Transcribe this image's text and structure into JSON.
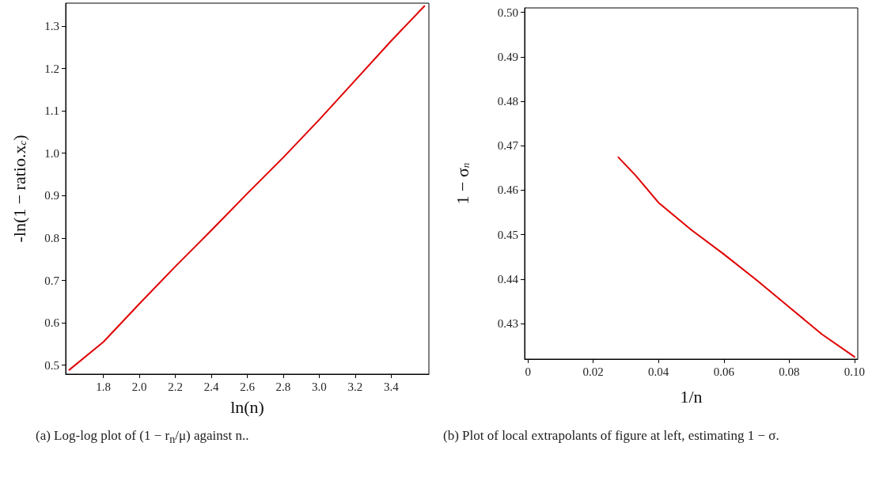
{
  "chart_data": [
    {
      "type": "line",
      "xlabel": "ln(n)",
      "ylabel": "-ln(1 − ratio.x$_{c}$)",
      "x": [
        1.61,
        1.8,
        2.0,
        2.2,
        2.4,
        2.6,
        2.8,
        3.0,
        3.2,
        3.4,
        3.585
      ],
      "series": [
        {
          "color": "#e00000",
          "values": [
            0.489,
            0.555,
            0.645,
            0.733,
            0.818,
            0.905,
            0.99,
            1.079,
            1.172,
            1.265,
            1.347
          ]
        }
      ],
      "xlim": [
        1.59,
        3.61
      ],
      "xticks": [
        1.8,
        {
          "value": 2,
          "label": "2.0"
        },
        2.2,
        2.4,
        2.6,
        2.8,
        {
          "value": 3,
          "label": "3.0"
        },
        3.2,
        3.4
      ],
      "ylim": [
        0.479,
        1.354
      ],
      "yticks": [
        0.5,
        0.6,
        0.7,
        0.8,
        0.9,
        {
          "value": 1,
          "label": "1.0"
        },
        1.1,
        1.2,
        1.3
      ],
      "grid": false,
      "marker": "none",
      "line_style": "solid",
      "annotations": [
        "(a) Log-log plot of (1 − r$_{n}$/μ) against n.."
      ]
    },
    {
      "type": "line",
      "xlabel": "1/n",
      "ylabel": "1 − σ$_{n}$",
      "x": [
        0.0277,
        0.033,
        0.04,
        0.05,
        0.06,
        0.07,
        0.08,
        0.09,
        0.1
      ],
      "series": [
        {
          "color": "#e00000",
          "values": [
            0.4674,
            0.4633,
            0.4572,
            0.4511,
            0.4456,
            0.4398,
            0.4337,
            0.4276,
            0.4225
          ]
        }
      ],
      "xlim": [
        -0.001,
        0.101
      ],
      "xticks": [
        0,
        0.02,
        0.04,
        0.06,
        0.08,
        {
          "value": 0.1,
          "label": "0.10"
        }
      ],
      "ylim": [
        0.422,
        0.501
      ],
      "yticks": [
        0.43,
        0.44,
        0.45,
        0.46,
        0.47,
        0.48,
        0.49,
        {
          "value": 0.5,
          "label": "0.50"
        }
      ],
      "grid": false,
      "marker": "none",
      "line_style": "solid",
      "annotations": [
        "(b) Plot of local extrapolants of figure at left, estimating 1 − σ."
      ]
    }
  ]
}
